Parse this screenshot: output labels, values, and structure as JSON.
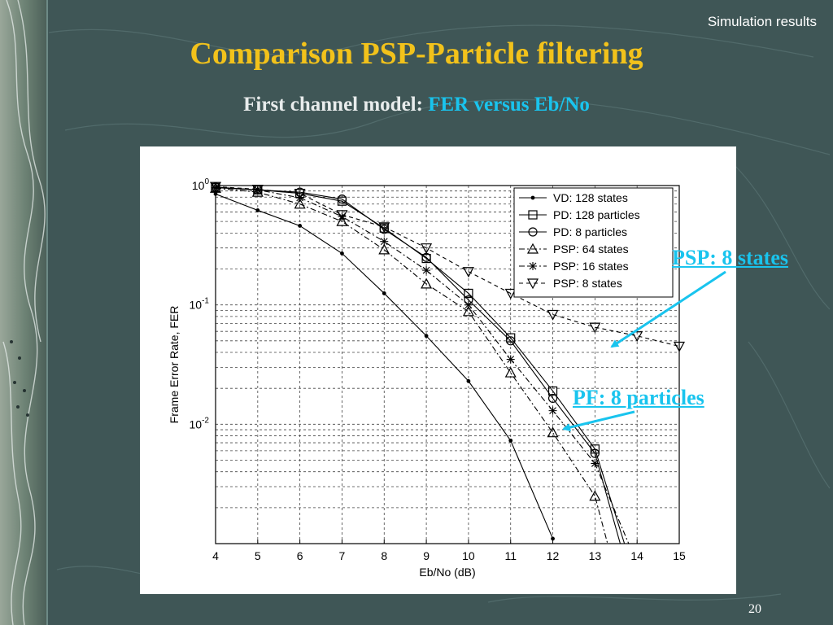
{
  "slide": {
    "header_label": "Simulation results",
    "title": "Comparison PSP-Particle filtering",
    "subtitle_prefix": "First channel model: ",
    "subtitle_accent": "FER versus Eb/No",
    "page_number": "20",
    "callouts": [
      {
        "label": "PSP: 8 states",
        "points_to_series": "PSP: 8 states"
      },
      {
        "label": "PF: 8 particles",
        "points_to_series": "PD: 8 particles"
      }
    ]
  },
  "colors": {
    "background": "#3f5656",
    "title": "#f2c21b",
    "subtitle": "#e8ecec",
    "accent": "#19c4ee",
    "arrow": "#19c4ee",
    "plot_line": "#000000"
  },
  "chart_data": {
    "type": "line",
    "title": "",
    "xlabel": "Eb/No (dB)",
    "ylabel": "Frame Error Rate, FER",
    "y_scale": "log",
    "xlim": [
      4,
      15
    ],
    "ylim": [
      0.001,
      1
    ],
    "x_ticks": [
      4,
      5,
      6,
      7,
      8,
      9,
      10,
      11,
      12,
      13,
      14,
      15
    ],
    "y_ticks": [
      {
        "value": 1,
        "base": "10",
        "exp": "0"
      },
      {
        "value": 0.1,
        "base": "10",
        "exp": "-1"
      },
      {
        "value": 0.01,
        "base": "10",
        "exp": "-2"
      }
    ],
    "grid": true,
    "legend_position": "top-right",
    "series": [
      {
        "name": "VD: 128 states",
        "marker": "dot",
        "dash": "solid",
        "x": [
          4,
          5,
          6,
          7,
          8,
          9,
          10,
          11,
          12
        ],
        "y": [
          0.85,
          0.62,
          0.46,
          0.27,
          0.125,
          0.055,
          0.023,
          0.0073,
          0.0011
        ]
      },
      {
        "name": "PD: 128 particles",
        "marker": "square",
        "dash": "solid",
        "x": [
          4,
          5,
          6,
          7,
          8,
          9,
          10,
          11,
          12,
          13,
          13.7
        ],
        "y": [
          0.96,
          0.92,
          0.86,
          0.74,
          0.44,
          0.245,
          0.125,
          0.053,
          0.019,
          0.0062,
          0.001
        ]
      },
      {
        "name": "PD: 8 particles",
        "marker": "circle",
        "dash": "solid",
        "x": [
          4,
          5,
          6,
          7,
          8,
          9,
          10,
          11,
          12,
          13,
          13.6
        ],
        "y": [
          0.97,
          0.92,
          0.88,
          0.77,
          0.43,
          0.25,
          0.11,
          0.05,
          0.0165,
          0.0057,
          0.001
        ]
      },
      {
        "name": "PSP: 64 states",
        "marker": "triangle-up",
        "dash": "dashdot",
        "x": [
          4,
          5,
          6,
          7,
          8,
          9,
          10,
          11,
          12,
          13,
          13.3
        ],
        "y": [
          0.95,
          0.88,
          0.7,
          0.5,
          0.29,
          0.15,
          0.088,
          0.027,
          0.0085,
          0.0025,
          0.001
        ]
      },
      {
        "name": "PSP: 16 states",
        "marker": "asterisk",
        "dash": "dashdot",
        "x": [
          4,
          5,
          6,
          7,
          8,
          9,
          10,
          11,
          12,
          13,
          13.8
        ],
        "y": [
          0.96,
          0.92,
          0.79,
          0.55,
          0.34,
          0.195,
          0.1,
          0.035,
          0.013,
          0.0047,
          0.001
        ]
      },
      {
        "name": "PSP: 8 states",
        "marker": "triangle-down",
        "dash": "dashed",
        "x": [
          4,
          5,
          6,
          7,
          8,
          9,
          10,
          11,
          12,
          13,
          14,
          15
        ],
        "y": [
          0.98,
          0.93,
          0.86,
          0.57,
          0.45,
          0.3,
          0.19,
          0.125,
          0.083,
          0.065,
          0.055,
          0.045
        ]
      }
    ]
  }
}
